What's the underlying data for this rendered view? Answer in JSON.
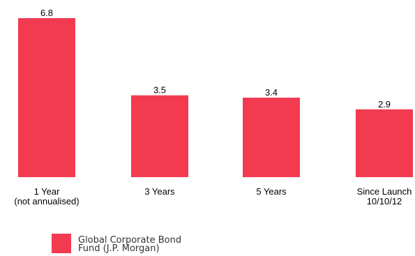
{
  "chart_data": {
    "type": "bar",
    "categories": [
      [
        "1 Year",
        "(not annualised)"
      ],
      [
        "3 Years"
      ],
      [
        "5 Years"
      ],
      [
        "Since Launch",
        "10/10/12"
      ]
    ],
    "series": [
      {
        "name": "Global Corporate Bond Fund (J.P. Morgan)",
        "name_lines": [
          "Global Corporate Bond",
          "Fund (J.P. Morgan)"
        ],
        "values": [
          6.8,
          3.5,
          3.4,
          2.9
        ],
        "value_labels": [
          "6.8",
          "3.5",
          "3.4",
          "2.9"
        ],
        "color": "#f23b51"
      }
    ],
    "ylim": [
      0,
      6.8
    ],
    "grid": false,
    "legend": "bottom-left",
    "title": "",
    "xlabel": "",
    "ylabel": ""
  }
}
